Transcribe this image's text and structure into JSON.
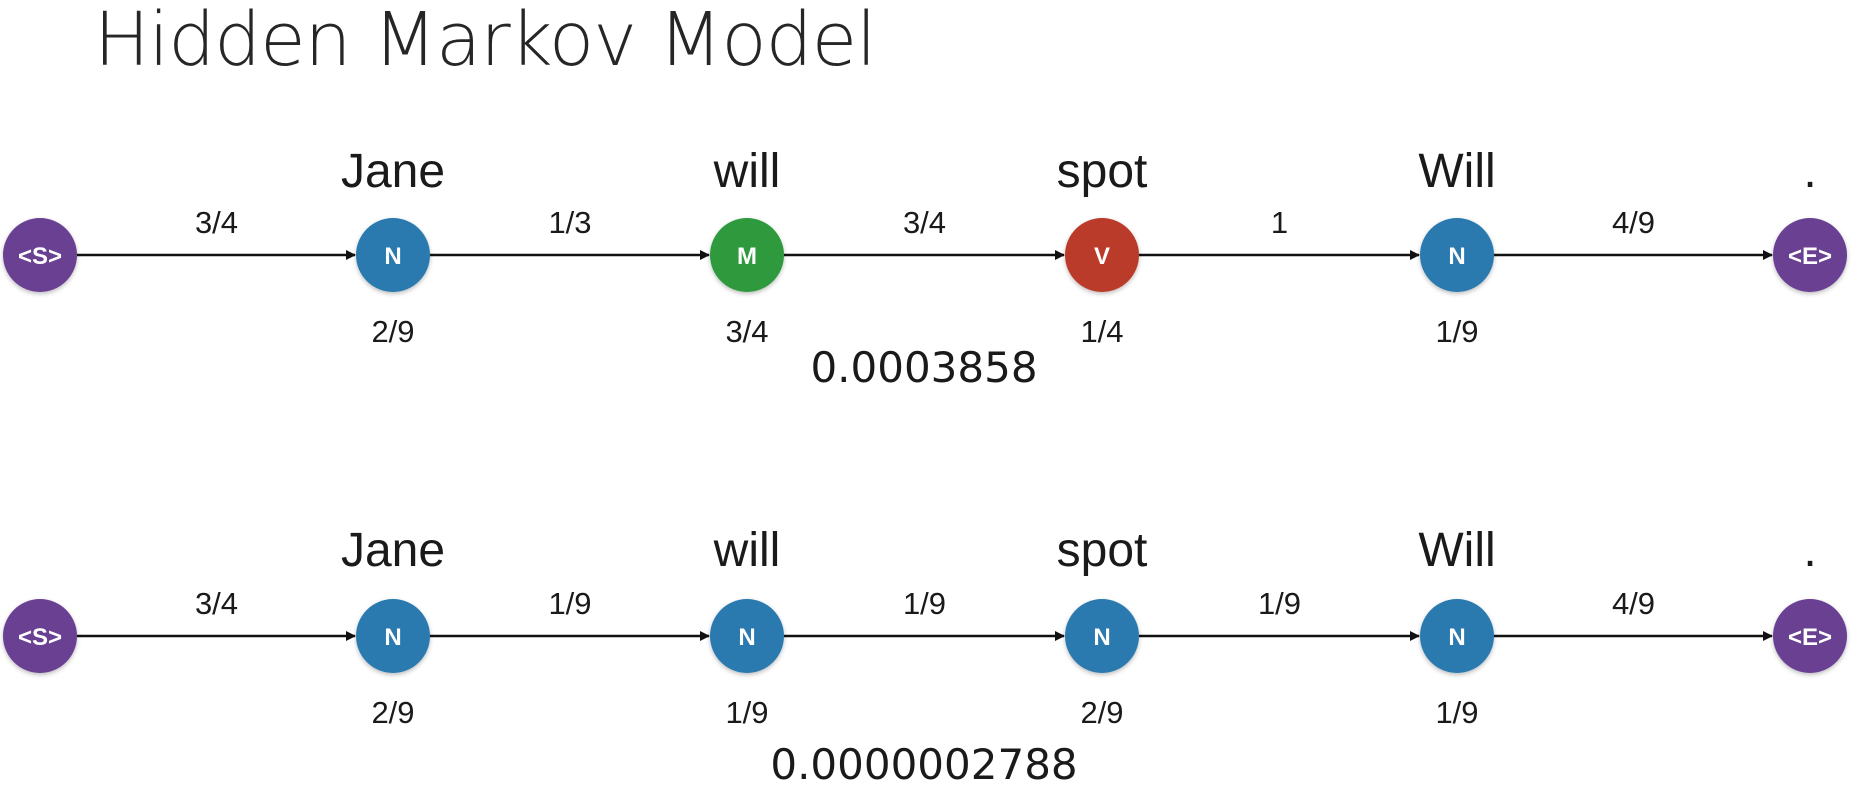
{
  "title": "Hidden Markov Model",
  "colors": {
    "noun": "#2c7ab0",
    "modal": "#2e9a3e",
    "verb": "#bb3a2a",
    "boundary": "#6a3f92",
    "edge": "#111111"
  },
  "words": [
    "Jane",
    "will",
    "spot",
    "Will",
    "."
  ],
  "sequences": [
    {
      "tags": [
        "<S>",
        "N",
        "M",
        "V",
        "N",
        "<E>"
      ],
      "node_colors": [
        "boundary",
        "noun",
        "modal",
        "verb",
        "noun",
        "boundary"
      ],
      "transitions": [
        "3/4",
        "1/3",
        "3/4",
        "1",
        "4/9"
      ],
      "emissions": [
        "2/9",
        "3/4",
        "1/4",
        "1/9"
      ],
      "probability": "0.0003858"
    },
    {
      "tags": [
        "<S>",
        "N",
        "N",
        "N",
        "N",
        "<E>"
      ],
      "node_colors": [
        "boundary",
        "noun",
        "noun",
        "noun",
        "noun",
        "boundary"
      ],
      "transitions": [
        "3/4",
        "1/9",
        "1/9",
        "1/9",
        "4/9"
      ],
      "emissions": [
        "2/9",
        "1/9",
        "2/9",
        "1/9"
      ],
      "probability": "0.0000002788"
    }
  ]
}
